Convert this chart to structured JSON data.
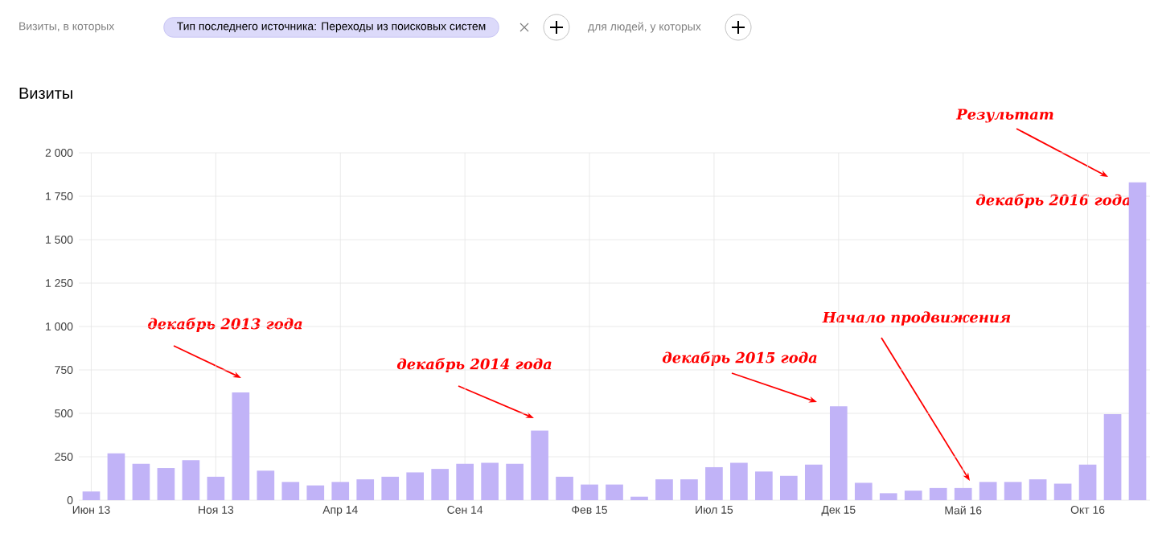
{
  "chart_data": {
    "type": "bar",
    "title": "Визиты",
    "categories": [
      "Июн 13",
      null,
      null,
      null,
      null,
      "Ноя 13",
      null,
      null,
      null,
      null,
      "Апр 14",
      null,
      null,
      null,
      null,
      "Сен 14",
      null,
      null,
      null,
      null,
      "Фев 15",
      null,
      null,
      null,
      null,
      "Июл 15",
      null,
      null,
      null,
      null,
      "Дек 15",
      null,
      null,
      null,
      null,
      "Май 16",
      null,
      null,
      null,
      null,
      "Окт 16",
      null,
      null
    ],
    "values": [
      50,
      270,
      210,
      185,
      230,
      135,
      620,
      170,
      105,
      85,
      105,
      120,
      135,
      160,
      180,
      210,
      215,
      210,
      400,
      135,
      90,
      90,
      20,
      120,
      120,
      190,
      215,
      165,
      140,
      205,
      540,
      100,
      40,
      55,
      70,
      70,
      105,
      105,
      120,
      95,
      205,
      495,
      1830
    ],
    "color": "#c1b3f7",
    "ylim": [
      0,
      2000
    ],
    "yticks": [
      0,
      250,
      500,
      750,
      {
        "value": 1000,
        "label": "1 000"
      },
      {
        "value": 1250,
        "label": "1 250"
      },
      {
        "value": 1500,
        "label": "1 500"
      },
      {
        "value": 1750,
        "label": "1 750"
      },
      {
        "value": 2000,
        "label": "2 000"
      }
    ],
    "grid": true,
    "annotations": [
      "Визиты, в которых",
      "Тип последнего источника: Переходы из поисковых систем",
      "для людей, у которых",
      "декабрь 2013 года",
      "декабрь 2014 года",
      "декабрь 2015 года",
      "Начало продвижения",
      "Результат",
      "декабрь 2016 года"
    ]
  }
}
